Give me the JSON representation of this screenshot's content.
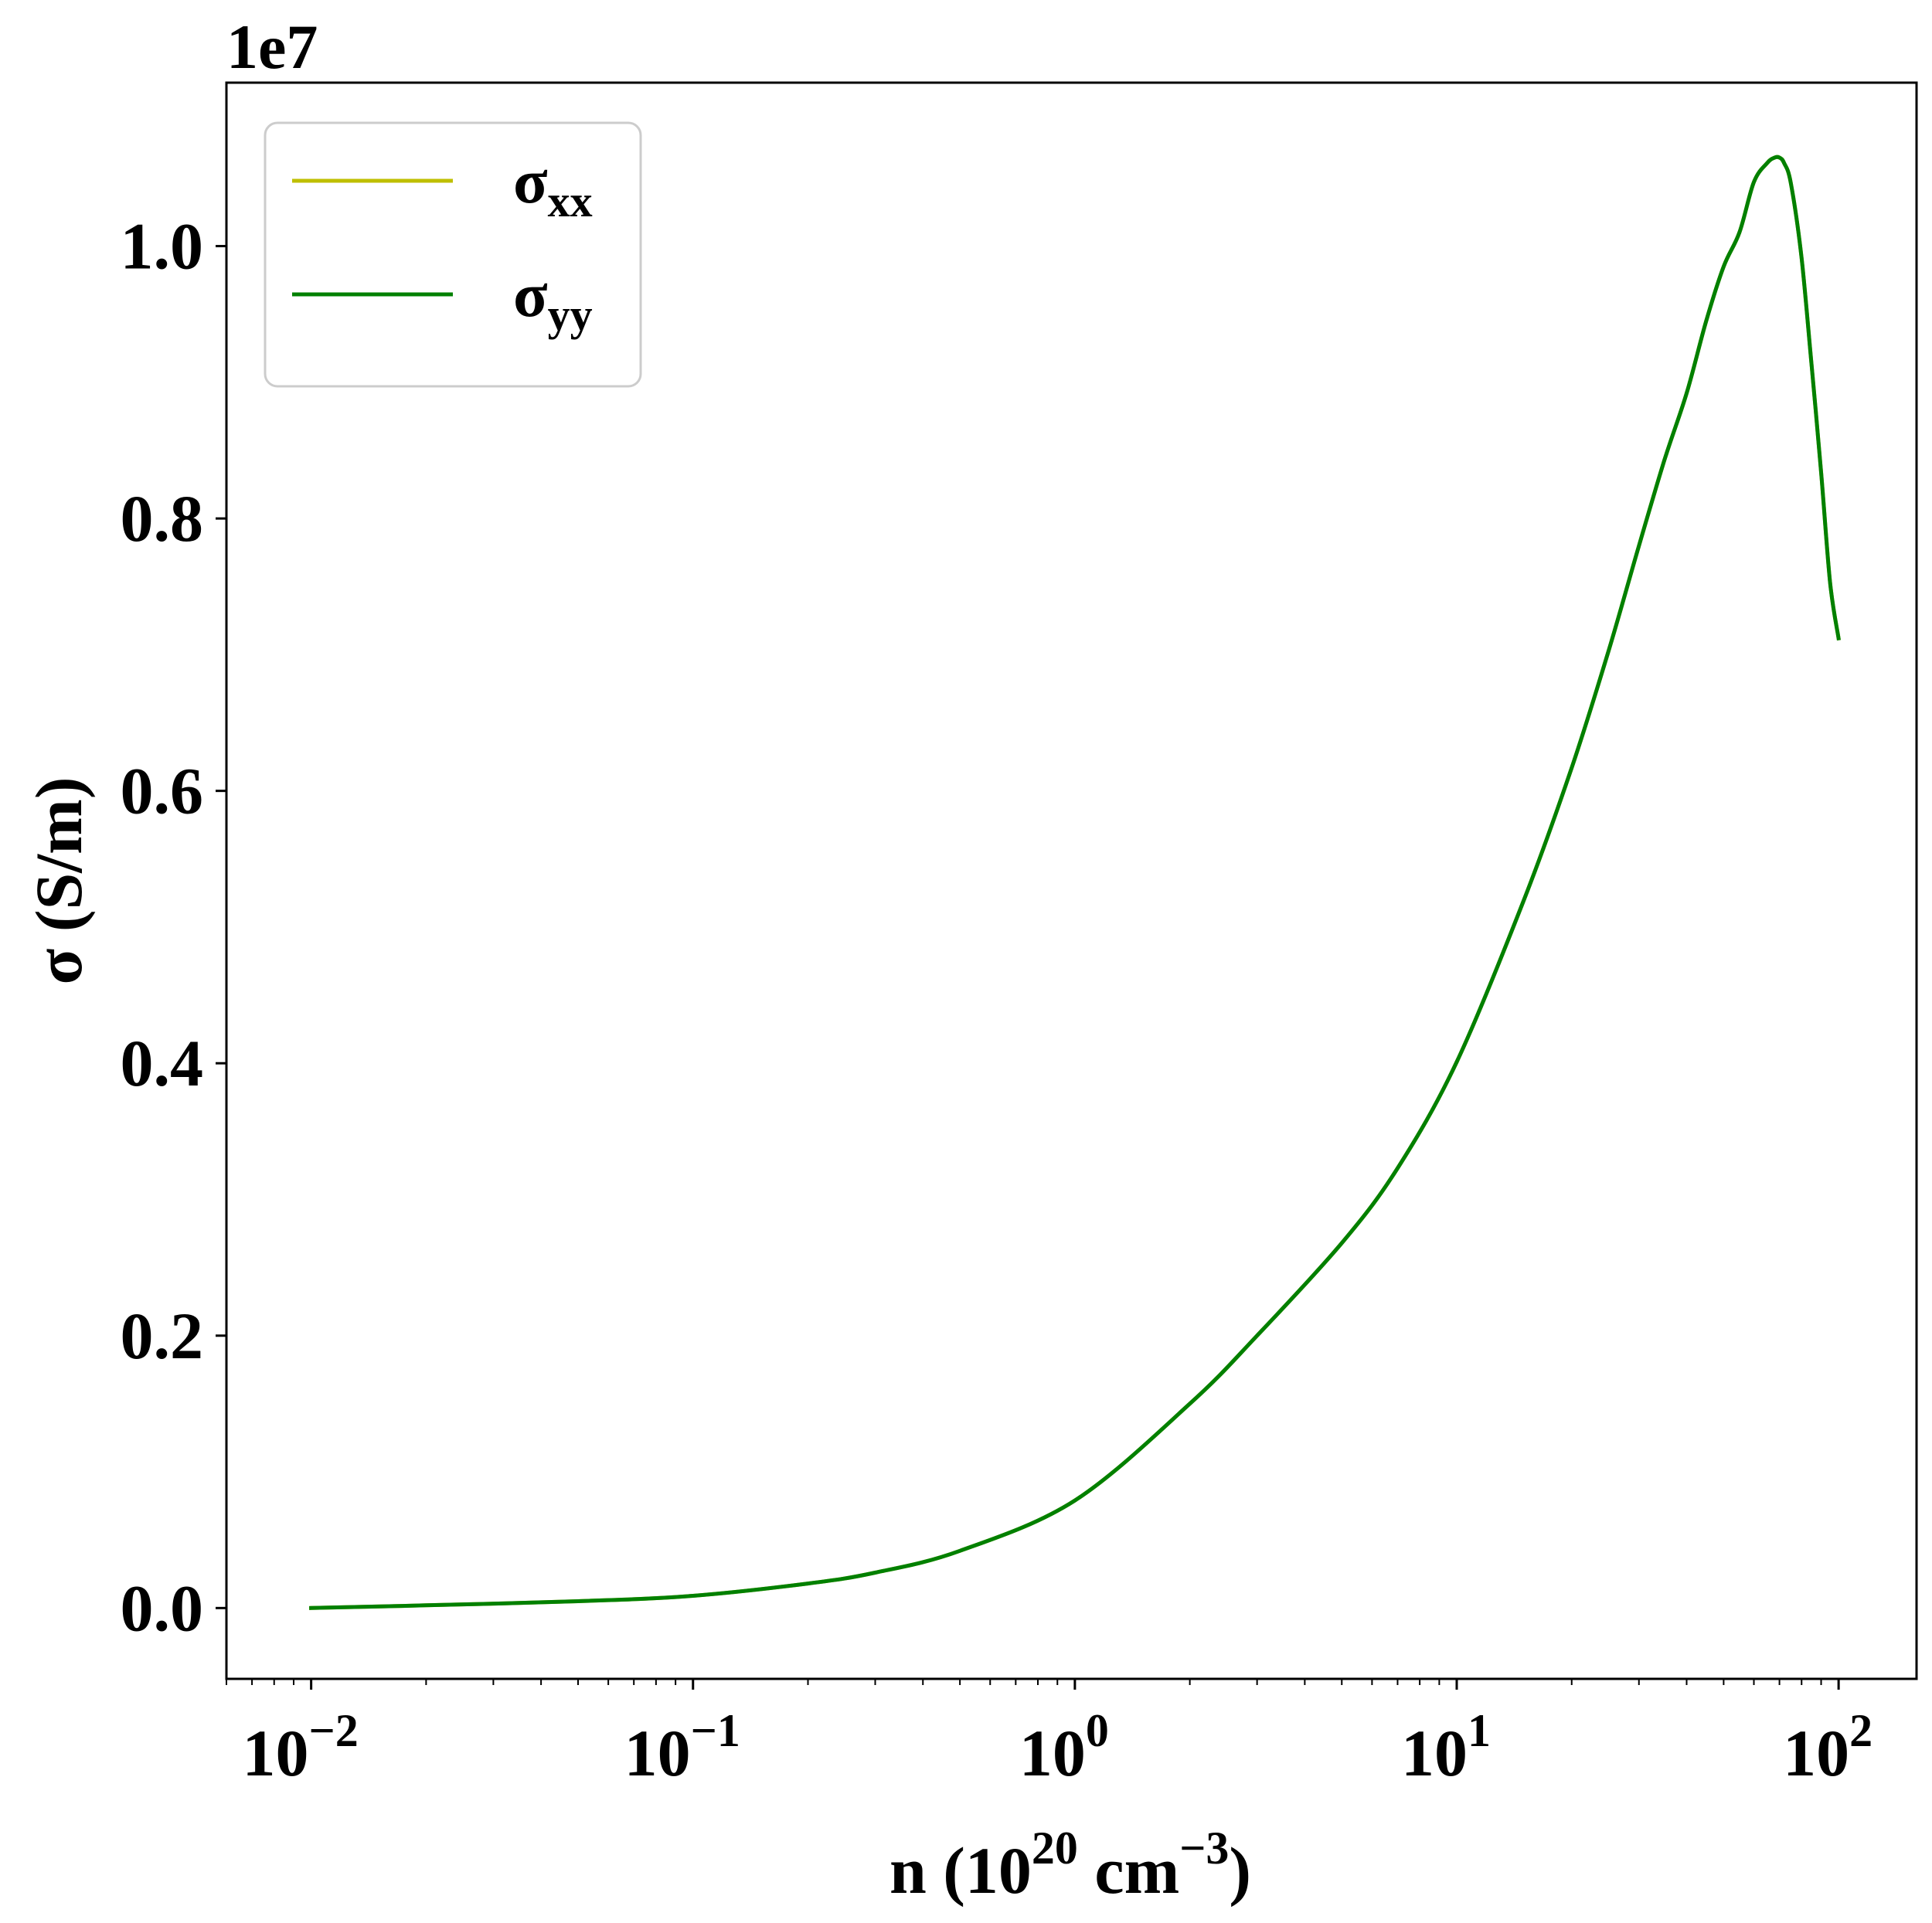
{
  "chart_data": {
    "type": "line",
    "x_scale": "log",
    "xlim": [
      0.006,
      160
    ],
    "ylim": [
      -0.052,
      1.12
    ],
    "y_offset_text": "1e7",
    "ylabel": "σ (S/m)",
    "xlabel": {
      "prefix": "n (10",
      "sup1": "20",
      "mid": " cm",
      "sup2": "−3",
      "suffix": ")"
    },
    "x_major_ticks": [
      {
        "value": 0.01,
        "base": "10",
        "exp": "−2"
      },
      {
        "value": 0.1,
        "base": "10",
        "exp": "−1"
      },
      {
        "value": 1,
        "base": "10",
        "exp": "0"
      },
      {
        "value": 10,
        "base": "10",
        "exp": "1"
      },
      {
        "value": 100,
        "base": "10",
        "exp": "2"
      }
    ],
    "y_ticks": [
      {
        "value": 0.0,
        "label": "0.0"
      },
      {
        "value": 0.2,
        "label": "0.2"
      },
      {
        "value": 0.4,
        "label": "0.4"
      },
      {
        "value": 0.6,
        "label": "0.6"
      },
      {
        "value": 0.8,
        "label": "0.8"
      },
      {
        "value": 1.0,
        "label": "1.0"
      }
    ],
    "grid": false,
    "legend_position": "top-left",
    "series": [
      {
        "name": "σxx",
        "name_base": "σ",
        "name_sub": "xx",
        "color": "#bfbf00",
        "x": [
          0.01,
          0.02,
          0.05,
          0.1,
          0.2,
          0.3,
          0.5,
          1,
          2,
          3,
          5,
          7,
          10,
          15,
          20,
          25,
          30,
          35,
          40,
          45,
          50,
          55,
          60,
          65,
          68,
          70,
          72,
          75,
          80,
          85,
          90,
          95,
          100
        ],
        "y": [
          0.0,
          0.002,
          0.005,
          0.009,
          0.018,
          0.026,
          0.042,
          0.079,
          0.15,
          0.2,
          0.268,
          0.323,
          0.401,
          0.52,
          0.617,
          0.703,
          0.78,
          0.843,
          0.892,
          0.945,
          0.985,
          1.01,
          1.047,
          1.061,
          1.065,
          1.065,
          1.061,
          1.046,
          0.991,
          0.912,
          0.834,
          0.753,
          0.712
        ]
      },
      {
        "name": "σyy",
        "name_base": "σ",
        "name_sub": "yy",
        "color": "#008000",
        "x": [
          0.01,
          0.02,
          0.05,
          0.1,
          0.2,
          0.3,
          0.5,
          1,
          2,
          3,
          5,
          7,
          10,
          15,
          20,
          25,
          30,
          35,
          40,
          45,
          50,
          55,
          60,
          65,
          68,
          70,
          72,
          75,
          80,
          85,
          90,
          95,
          100
        ],
        "y": [
          0.0,
          0.002,
          0.005,
          0.009,
          0.018,
          0.026,
          0.042,
          0.079,
          0.15,
          0.2,
          0.268,
          0.323,
          0.401,
          0.52,
          0.617,
          0.703,
          0.78,
          0.843,
          0.892,
          0.945,
          0.985,
          1.01,
          1.047,
          1.061,
          1.065,
          1.065,
          1.061,
          1.046,
          0.991,
          0.912,
          0.834,
          0.753,
          0.712
        ]
      }
    ]
  }
}
